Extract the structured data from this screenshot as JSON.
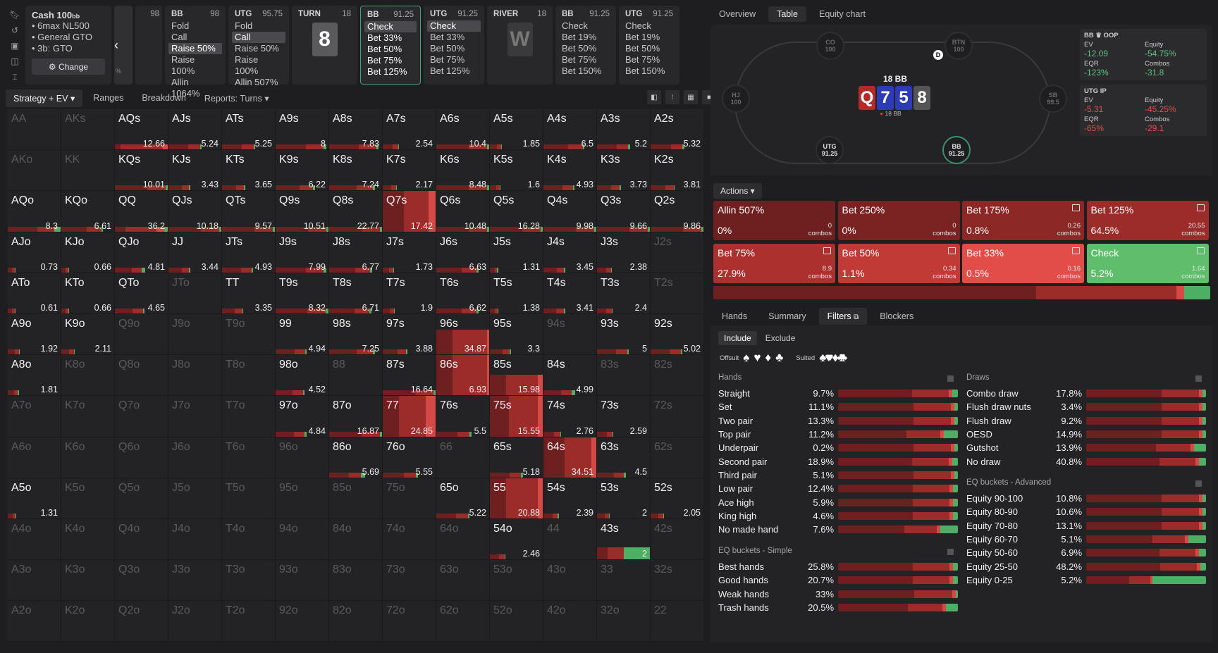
{
  "colors": {
    "dark_red": "#6e1f1f",
    "mid_red": "#9b2c2a",
    "bright_red": "#d54845",
    "green": "#4caf63",
    "cell_bg": "#232325"
  },
  "left_icons": [
    "bookmark-icon",
    "history-icon",
    "save-icon",
    "controller-icon",
    "chart-icon"
  ],
  "nav": {
    "cash": {
      "title": "Cash 100",
      "unit": "bb",
      "lines": [
        "• 6max NL500",
        "• General GTO",
        "• 3b: GTO"
      ],
      "change": "Change",
      "gear": "⚙",
      "pct": "%"
    },
    "back": "‹",
    "stub": {
      "value": "98"
    },
    "cards": [
      {
        "pos": "BB",
        "size": "98",
        "items": [
          "Fold",
          "Call",
          "Raise 50%",
          "Raise 100%",
          "Allin 1064%"
        ],
        "sel": 2
      },
      {
        "pos": "UTG",
        "size": "95.75",
        "items": [
          "Fold",
          "Call",
          "Raise 50%",
          "Raise 100%",
          "Allin 507%"
        ],
        "sel": 1
      },
      {
        "pos": "TURN",
        "size": "18",
        "card": "8"
      },
      {
        "pos": "BB",
        "size": "91.25",
        "items": [
          "Check",
          "Bet 33%",
          "Bet 50%",
          "Bet 75%",
          "Bet 125%"
        ],
        "sel": 0,
        "active": true
      },
      {
        "pos": "UTG",
        "size": "91.25",
        "items": [
          "Check",
          "Bet 33%",
          "Bet 50%",
          "Bet 75%",
          "Bet 125%"
        ],
        "sel": 0
      },
      {
        "pos": "RIVER",
        "size": "18",
        "card": "W"
      },
      {
        "pos": "BB",
        "size": "91.25",
        "items": [
          "Check",
          "Bet 19%",
          "Bet 50%",
          "Bet 75%",
          "Bet 150%"
        ]
      },
      {
        "pos": "UTG",
        "size": "91.25",
        "items": [
          "Check",
          "Bet 19%",
          "Bet 50%",
          "Bet 75%",
          "Bet 150%"
        ]
      }
    ]
  },
  "view_tabs": [
    "Strategy + EV ▾",
    "Ranges",
    "Breakdown",
    "Reports: Turns ▾"
  ],
  "grid": [
    [
      "AA",
      "",
      "d"
    ],
    [
      "AKs",
      "",
      "d"
    ],
    [
      "AQs",
      "12.66",
      ""
    ],
    [
      "AJs",
      "5.24",
      ""
    ],
    [
      "ATs",
      "5.25",
      ""
    ],
    [
      "A9s",
      "8",
      ""
    ],
    [
      "A8s",
      "7.83",
      ""
    ],
    [
      "A7s",
      "2.54",
      ""
    ],
    [
      "A6s",
      "10.4",
      ""
    ],
    [
      "A5s",
      "1.85",
      ""
    ],
    [
      "A4s",
      "6.5",
      ""
    ],
    [
      "A3s",
      "5.2",
      ""
    ],
    [
      "A2s",
      "5.32",
      ""
    ],
    [
      "AKo",
      "",
      "d"
    ],
    [
      "KK",
      "",
      "d"
    ],
    [
      "KQs",
      "10.01",
      ""
    ],
    [
      "KJs",
      "3.43",
      ""
    ],
    [
      "KTs",
      "3.65",
      ""
    ],
    [
      "K9s",
      "6.22",
      ""
    ],
    [
      "K8s",
      "7.24",
      ""
    ],
    [
      "K7s",
      "2.17",
      ""
    ],
    [
      "K6s",
      "8.48",
      ""
    ],
    [
      "K5s",
      "1.6",
      ""
    ],
    [
      "K4s",
      "4.93",
      ""
    ],
    [
      "K3s",
      "3.73",
      ""
    ],
    [
      "K2s",
      "3.81",
      ""
    ],
    [
      "AQo",
      "8.3",
      ""
    ],
    [
      "KQo",
      "6.61",
      ""
    ],
    [
      "QQ",
      "36.2",
      ""
    ],
    [
      "QJs",
      "10.18",
      ""
    ],
    [
      "QTs",
      "9.57",
      ""
    ],
    [
      "Q9s",
      "10.51",
      ""
    ],
    [
      "Q8s",
      "22.77",
      ""
    ],
    [
      "Q7s",
      "17.42",
      ""
    ],
    [
      "Q6s",
      "10.48",
      ""
    ],
    [
      "Q5s",
      "16.28",
      ""
    ],
    [
      "Q4s",
      "9.98",
      ""
    ],
    [
      "Q3s",
      "9.66",
      ""
    ],
    [
      "Q2s",
      "9.86",
      ""
    ],
    [
      "AJo",
      "0.73",
      ""
    ],
    [
      "KJo",
      "0.66",
      ""
    ],
    [
      "QJo",
      "4.81",
      ""
    ],
    [
      "JJ",
      "3.44",
      ""
    ],
    [
      "JTs",
      "4.93",
      ""
    ],
    [
      "J9s",
      "7.99",
      ""
    ],
    [
      "J8s",
      "6.77",
      ""
    ],
    [
      "J7s",
      "1.73",
      ""
    ],
    [
      "J6s",
      "6.63",
      ""
    ],
    [
      "J5s",
      "1.31",
      ""
    ],
    [
      "J4s",
      "3.45",
      ""
    ],
    [
      "J3s",
      "2.38",
      ""
    ],
    [
      "J2s",
      "",
      "d"
    ],
    [
      "ATo",
      "0.61",
      ""
    ],
    [
      "KTo",
      "0.66",
      ""
    ],
    [
      "QTo",
      "4.65",
      ""
    ],
    [
      "JTo",
      "",
      "d"
    ],
    [
      "TT",
      "3.35",
      ""
    ],
    [
      "T9s",
      "8.32",
      ""
    ],
    [
      "T8s",
      "6.71",
      ""
    ],
    [
      "T7s",
      "1.9",
      ""
    ],
    [
      "T6s",
      "6.62",
      ""
    ],
    [
      "T5s",
      "1.38",
      ""
    ],
    [
      "T4s",
      "3.41",
      ""
    ],
    [
      "T3s",
      "2.4",
      ""
    ],
    [
      "T2s",
      "",
      "d"
    ],
    [
      "A9o",
      "1.92",
      ""
    ],
    [
      "K9o",
      "2.11",
      ""
    ],
    [
      "Q9o",
      "",
      "d"
    ],
    [
      "J9o",
      "",
      "d"
    ],
    [
      "T9o",
      "",
      "d"
    ],
    [
      "99",
      "4.94",
      ""
    ],
    [
      "98s",
      "7.25",
      ""
    ],
    [
      "97s",
      "3.88",
      ""
    ],
    [
      "96s",
      "34.87",
      ""
    ],
    [
      "95s",
      "3.3",
      ""
    ],
    [
      "94s",
      "",
      "d"
    ],
    [
      "93s",
      "5",
      ""
    ],
    [
      "92s",
      "5.02",
      ""
    ],
    [
      "A8o",
      "1.81",
      ""
    ],
    [
      "K8o",
      "",
      "d"
    ],
    [
      "Q8o",
      "",
      "d"
    ],
    [
      "J8o",
      "",
      "d"
    ],
    [
      "T8o",
      "",
      "d"
    ],
    [
      "98o",
      "4.52",
      ""
    ],
    [
      "88",
      "",
      "d"
    ],
    [
      "87s",
      "16.64",
      ""
    ],
    [
      "86s",
      "6.93",
      ""
    ],
    [
      "85s",
      "15.98",
      ""
    ],
    [
      "84s",
      "4.99",
      ""
    ],
    [
      "83s",
      "",
      "d"
    ],
    [
      "82s",
      "",
      "d"
    ],
    [
      "A7o",
      "",
      "d"
    ],
    [
      "K7o",
      "",
      "d"
    ],
    [
      "Q7o",
      "",
      "d"
    ],
    [
      "J7o",
      "",
      "d"
    ],
    [
      "T7o",
      "",
      "d"
    ],
    [
      "97o",
      "4.84",
      ""
    ],
    [
      "87o",
      "16.87",
      ""
    ],
    [
      "77",
      "24.85",
      ""
    ],
    [
      "76s",
      "5.5",
      ""
    ],
    [
      "75s",
      "15.55",
      ""
    ],
    [
      "74s",
      "2.76",
      ""
    ],
    [
      "73s",
      "2.59",
      ""
    ],
    [
      "72s",
      "",
      "d"
    ],
    [
      "A6o",
      "",
      "d"
    ],
    [
      "K6o",
      "",
      "d"
    ],
    [
      "Q6o",
      "",
      "d"
    ],
    [
      "J6o",
      "",
      "d"
    ],
    [
      "T6o",
      "",
      "d"
    ],
    [
      "96o",
      "",
      "d"
    ],
    [
      "86o",
      "5.69",
      ""
    ],
    [
      "76o",
      "5.55",
      ""
    ],
    [
      "66",
      "",
      "d"
    ],
    [
      "65s",
      "5.18",
      ""
    ],
    [
      "64s",
      "34.51",
      ""
    ],
    [
      "63s",
      "4.5",
      ""
    ],
    [
      "62s",
      "",
      "d"
    ],
    [
      "A5o",
      "1.31",
      ""
    ],
    [
      "K5o",
      "",
      "d"
    ],
    [
      "Q5o",
      "",
      "d"
    ],
    [
      "J5o",
      "",
      "d"
    ],
    [
      "T5o",
      "",
      "d"
    ],
    [
      "95o",
      "",
      "d"
    ],
    [
      "85o",
      "",
      "d"
    ],
    [
      "75o",
      "",
      "d"
    ],
    [
      "65o",
      "5.22",
      ""
    ],
    [
      "55",
      "20.88",
      ""
    ],
    [
      "54s",
      "2.39",
      ""
    ],
    [
      "53s",
      "2",
      ""
    ],
    [
      "52s",
      "2.05",
      ""
    ],
    [
      "A4o",
      "",
      "d"
    ],
    [
      "K4o",
      "",
      "d"
    ],
    [
      "Q4o",
      "",
      "d"
    ],
    [
      "J4o",
      "",
      "d"
    ],
    [
      "T4o",
      "",
      "d"
    ],
    [
      "94o",
      "",
      "d"
    ],
    [
      "84o",
      "",
      "d"
    ],
    [
      "74o",
      "",
      "d"
    ],
    [
      "64o",
      "",
      "d"
    ],
    [
      "54o",
      "2.46",
      ""
    ],
    [
      "44",
      "",
      "d"
    ],
    [
      "43s",
      "2",
      ""
    ],
    [
      "42s",
      "",
      "d"
    ],
    [
      "A3o",
      "",
      "d"
    ],
    [
      "K3o",
      "",
      "d"
    ],
    [
      "Q3o",
      "",
      "d"
    ],
    [
      "J3o",
      "",
      "d"
    ],
    [
      "T3o",
      "",
      "d"
    ],
    [
      "93o",
      "",
      "d"
    ],
    [
      "83o",
      "",
      "d"
    ],
    [
      "73o",
      "",
      "d"
    ],
    [
      "63o",
      "",
      "d"
    ],
    [
      "53o",
      "",
      "d"
    ],
    [
      "43o",
      "",
      "d"
    ],
    [
      "33",
      "",
      "d"
    ],
    [
      "32s",
      "",
      "d"
    ],
    [
      "A2o",
      "",
      "d"
    ],
    [
      "K2o",
      "",
      "d"
    ],
    [
      "Q2o",
      "",
      "d"
    ],
    [
      "J2o",
      "",
      "d"
    ],
    [
      "T2o",
      "",
      "d"
    ],
    [
      "92o",
      "",
      "d"
    ],
    [
      "82o",
      "",
      "d"
    ],
    [
      "72o",
      "",
      "d"
    ],
    [
      "62o",
      "",
      "d"
    ],
    [
      "52o",
      "",
      "d"
    ],
    [
      "42o",
      "",
      "d"
    ],
    [
      "32o",
      "",
      "d"
    ],
    [
      "22",
      "",
      "d"
    ]
  ],
  "right_tabs": [
    "Overview",
    "Table",
    "Equity chart"
  ],
  "table": {
    "pot": "18 BB",
    "pot_small": "18 BB",
    "dealer": "D",
    "seats": [
      {
        "name": "CO",
        "stack": "100"
      },
      {
        "name": "BTN",
        "stack": "100"
      },
      {
        "name": "SB",
        "stack": "99.5"
      },
      {
        "name": "BB",
        "stack": "91.25"
      },
      {
        "name": "UTG",
        "stack": "91.25"
      },
      {
        "name": "HJ",
        "stack": "100"
      }
    ],
    "board": [
      "Q",
      "7",
      "5",
      "8"
    ],
    "oop": {
      "title": "BB ♛ OOP",
      "ev_l": "EV",
      "ev": "-12.09",
      "eq_l": "Equity",
      "eq": "-54.75%",
      "eqr_l": "EQR",
      "eqr": "-123%",
      "cb_l": "Combos",
      "cb": "-31.8"
    },
    "ip": {
      "title": "UTG  IP",
      "ev_l": "EV",
      "ev": "-5.31",
      "eq_l": "Equity",
      "eq": "-45.25%",
      "eqr_l": "EQR",
      "eqr": "-65%",
      "cb_l": "Combos",
      "cb": "-29.1"
    }
  },
  "actions_label": "Actions ▾",
  "actions": [
    {
      "label": "Allin 507%",
      "pct": "0%",
      "combos": "0",
      "clabel": "combos"
    },
    {
      "label": "Bet 250%",
      "pct": "0%",
      "combos": "0",
      "clabel": "combos"
    },
    {
      "label": "Bet 175%",
      "pct": "0.8%",
      "combos": "0.26",
      "clabel": "combos"
    },
    {
      "label": "Bet 125%",
      "pct": "64.5%",
      "combos": "20.55",
      "clabel": "combos"
    },
    {
      "label": "Bet 75%",
      "pct": "27.9%",
      "combos": "8.9",
      "clabel": "combos"
    },
    {
      "label": "Bet 50%",
      "pct": "1.1%",
      "combos": "0.34",
      "clabel": "combos"
    },
    {
      "label": "Bet 33%",
      "pct": "0.5%",
      "combos": "0.16",
      "clabel": "combos"
    },
    {
      "label": "Check",
      "pct": "5.2%",
      "combos": "1.64",
      "clabel": "combos"
    }
  ],
  "bottom_tabs": [
    "Hands",
    "Summary",
    "Filters",
    "Blockers"
  ],
  "filters": {
    "include": "Include",
    "exclude": "Exclude",
    "offsuit": "Offsuit",
    "suited": "Suited",
    "offsuit_glyphs": [
      "♠",
      "♥",
      "♦",
      "♣"
    ],
    "suited_glyphs": [
      "♠♠",
      "♥♥",
      "♦♦",
      "♣♣"
    ],
    "hands_title": "Hands",
    "hands": [
      [
        "Straight",
        "9.7%",
        0.05
      ],
      [
        "Set",
        "11.1%",
        0.03
      ],
      [
        "Two pair",
        "13.3%",
        0.03
      ],
      [
        "Top pair",
        "11.2%",
        0.12
      ],
      [
        "Underpair",
        "0.2%",
        0.03
      ],
      [
        "Second pair",
        "18.9%",
        0.05
      ],
      [
        "Third pair",
        "5.1%",
        0.03
      ],
      [
        "Low pair",
        "12.4%",
        0.04
      ],
      [
        "Ace high",
        "5.9%",
        0.04
      ],
      [
        "King high",
        "4.6%",
        0.04
      ],
      [
        "No made hand",
        "7.6%",
        0.15
      ]
    ],
    "eqs_title": "EQ buckets - Simple",
    "eqs": [
      [
        "Best hands",
        "25.8%",
        0.04
      ],
      [
        "Good hands",
        "20.7%",
        0.04
      ],
      [
        "Weak hands",
        "33%",
        0.02
      ],
      [
        "Trash hands",
        "20.5%",
        0.1
      ]
    ],
    "draws_title": "Draws",
    "draws": [
      [
        "Combo draw",
        "17.8%",
        0.03
      ],
      [
        "Flush draw nuts",
        "3.4%",
        0.03
      ],
      [
        "Flush draw",
        "9.2%",
        0.03
      ],
      [
        "OESD",
        "14.9%",
        0.03
      ],
      [
        "Gutshot",
        "13.9%",
        0.1
      ],
      [
        "No draw",
        "40.8%",
        0.06
      ]
    ],
    "eqa_title": "EQ buckets - Advanced",
    "eqa": [
      [
        "Equity 90-100",
        "10.8%",
        0.03
      ],
      [
        "Equity 80-90",
        "10.6%",
        0.03
      ],
      [
        "Equity 70-80",
        "13.1%",
        0.03
      ],
      [
        "Equity 60-70",
        "5.1%",
        0.15
      ],
      [
        "Equity 50-60",
        "6.9%",
        0.06
      ],
      [
        "Equity 25-50",
        "48.2%",
        0.05
      ],
      [
        "Equity 0-25",
        "5.2%",
        0.45
      ]
    ]
  }
}
